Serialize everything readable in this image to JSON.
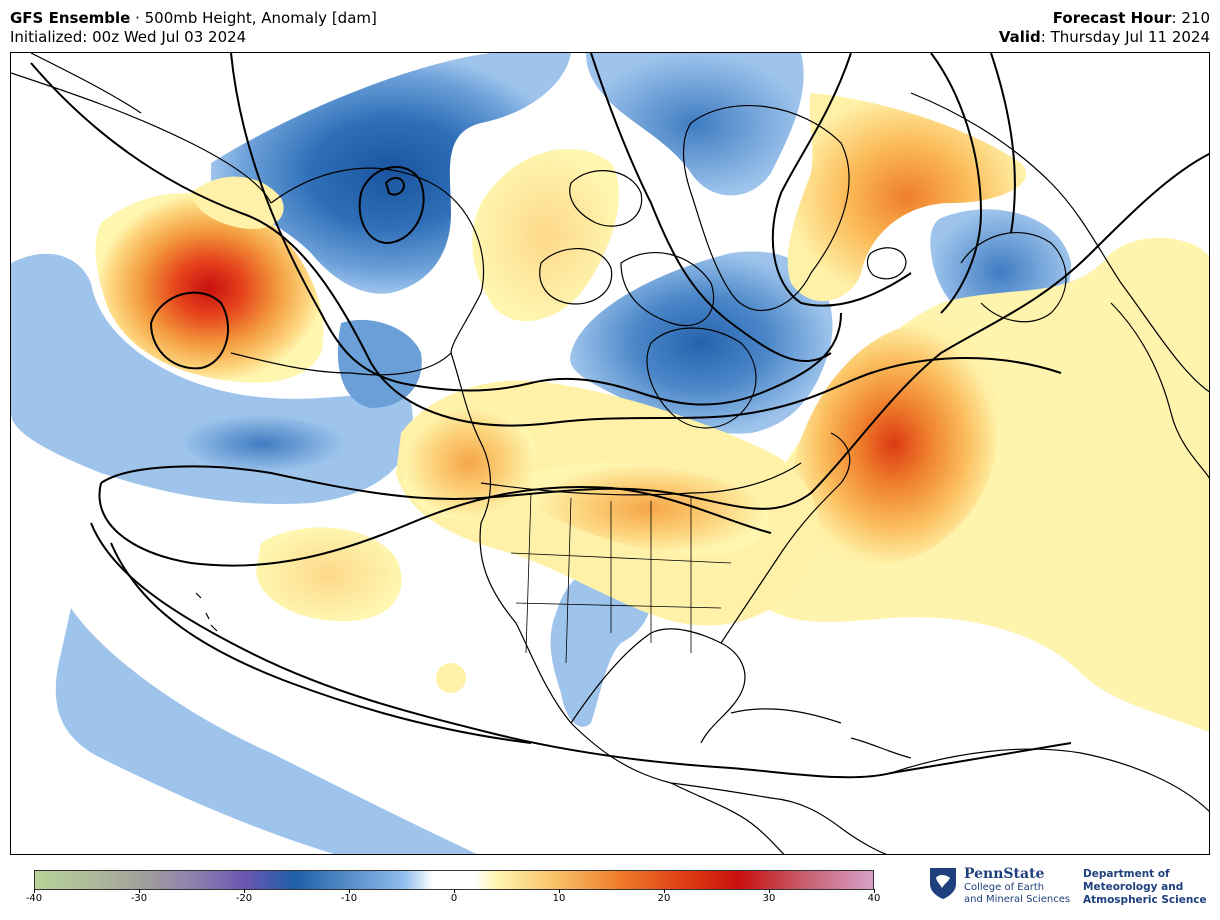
{
  "header": {
    "model": "GFS Ensemble",
    "separator": " · ",
    "product": "500mb Height, Anomaly [dam]",
    "initialized": "Initialized: 00z Wed Jul 03 2024",
    "forecast_hour_label": "Forecast Hour",
    "forecast_hour_value": ": 210",
    "valid_label": "Valid",
    "valid_value": ": Thursday Jul 11 2024"
  },
  "colorbar": {
    "min": -40,
    "max": 40,
    "ticks": [
      "-40",
      "-30",
      "-20",
      "-10",
      "0",
      "10",
      "20",
      "30",
      "40"
    ],
    "colors": {
      "neg_far": "#b8d49a",
      "neg_purple": "#7b5fb0",
      "neg_deep_blue": "#1f5fa8",
      "neg_light_blue": "#9ec4ec",
      "neutral": "#ffffff",
      "pos_pale_yellow": "#fff6b0",
      "pos_orange": "#f39a3c",
      "pos_red": "#c80f10",
      "pos_pink": "#d8a0c8"
    }
  },
  "map": {
    "features": [
      {
        "name": "Positive anomaly, NW Pacific",
        "sign": "positive",
        "peak_dam": 24
      },
      {
        "name": "Negative anomaly, Alaska / Bering",
        "sign": "negative",
        "peak_dam": -17
      },
      {
        "name": "Negative anomaly, Hudson Bay",
        "sign": "negative",
        "peak_dam": -15
      },
      {
        "name": "Positive anomaly, western North Atlantic",
        "sign": "positive",
        "peak_dam": 19
      },
      {
        "name": "Negative anomaly, Texas",
        "sign": "negative",
        "peak_dam": -6
      },
      {
        "name": "Positive anomaly, Pacific Northwest / US",
        "sign": "positive",
        "peak_dam": 9
      },
      {
        "name": "Negative anomaly, Scandinavia",
        "sign": "negative",
        "peak_dam": -10
      }
    ]
  },
  "logos": {
    "psu_title": "PennState",
    "psu_line1": "College of Earth",
    "psu_line2": "and Mineral Sciences",
    "dept_line1": "Department of",
    "dept_line2": "Meteorology and",
    "dept_line3": "Atmospheric Science"
  }
}
